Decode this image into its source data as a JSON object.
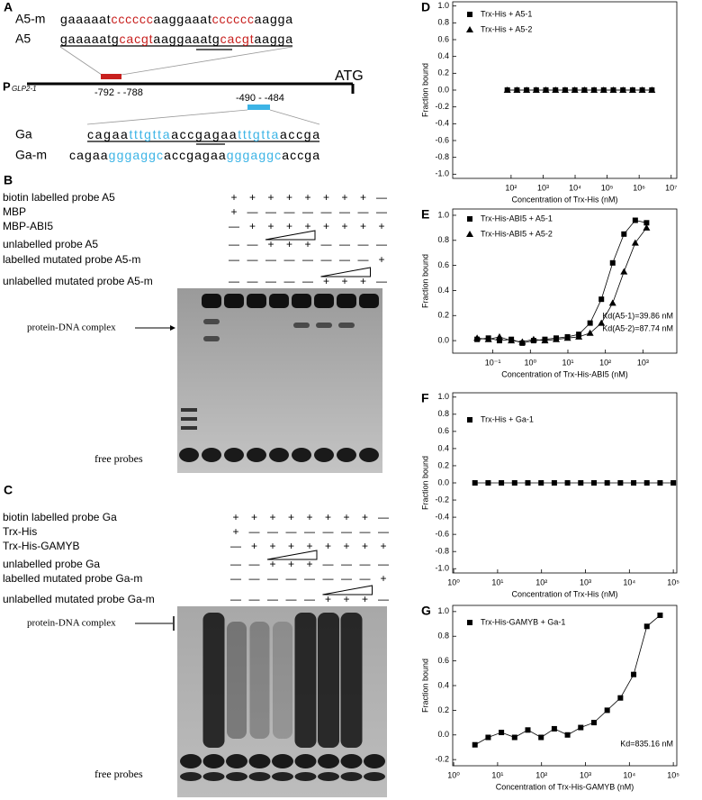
{
  "panel_a": {
    "letter": "A",
    "a5m": {
      "label": "A5-m",
      "segments": [
        "gaaaaat",
        "cccccc",
        "aaggaaat",
        "cccccc",
        "aagga"
      ],
      "color": "#c8201e"
    },
    "a5": {
      "label": "A5",
      "segments": [
        "gaaaaatg",
        "cacgt",
        "aaggaaatg",
        "cacgt",
        "aagga"
      ],
      "color": "#c8201e"
    },
    "promoter": {
      "name": "P",
      "subscript": "GLP2-1",
      "atg": "ATG",
      "site1": "-792 - -788",
      "site2": "-490 - -484"
    },
    "ga": {
      "label": "Ga",
      "segments": [
        "cagaa",
        "tttgtta",
        "accgagaa",
        "tttgtta",
        "accga"
      ],
      "color": "#3cb4e6"
    },
    "gam": {
      "label": "Ga-m",
      "segments": [
        "cagaa",
        "gggaggc",
        "accgagaa",
        "gggaggc",
        "accga"
      ],
      "color": "#3cb4e6"
    }
  },
  "panel_b": {
    "letter": "B",
    "complex_label": "protein-DNA complex",
    "free_label": "free probes",
    "rows": [
      {
        "label": "biotin labelled probe A5",
        "marks": [
          "+",
          "+",
          "+",
          "+",
          "+",
          "+",
          "+",
          "+",
          "—"
        ]
      },
      {
        "label": "MBP",
        "marks": [
          "+",
          "—",
          "—",
          "—",
          "—",
          "—",
          "—",
          "—",
          "—"
        ]
      },
      {
        "label": "MBP-ABI5",
        "marks": [
          "—",
          "+",
          "+",
          "+",
          "+",
          "+",
          "+",
          "+",
          "+"
        ]
      },
      {
        "label": "unlabelled probe A5",
        "marks": [
          "—",
          "—",
          "+",
          "+",
          "+",
          "—",
          "—",
          "—",
          "—"
        ]
      },
      {
        "label": "labelled mutated probe A5-m",
        "marks": [
          "—",
          "—",
          "—",
          "—",
          "—",
          "—",
          "—",
          "—",
          "+"
        ]
      },
      {
        "label": "unlabelled mutated probe A5-m",
        "marks": [
          "—",
          "—",
          "—",
          "—",
          "—",
          "+",
          "+",
          "+",
          "—"
        ]
      }
    ]
  },
  "panel_c": {
    "letter": "C",
    "complex_label": "protein-DNA complex",
    "free_label": "free probes",
    "rows": [
      {
        "label": "biotin labelled probe Ga",
        "marks": [
          "+",
          "+",
          "+",
          "+",
          "+",
          "+",
          "+",
          "+",
          "—"
        ]
      },
      {
        "label": "Trx-His",
        "marks": [
          "+",
          "—",
          "—",
          "—",
          "—",
          "—",
          "—",
          "—",
          "—"
        ]
      },
      {
        "label": "Trx-His-GAMYB",
        "marks": [
          "—",
          "+",
          "+",
          "+",
          "+",
          "+",
          "+",
          "+",
          "+"
        ]
      },
      {
        "label": "unlabelled probe Ga",
        "marks": [
          "—",
          "—",
          "+",
          "+",
          "+",
          "—",
          "—",
          "—",
          "—"
        ]
      },
      {
        "label": "labelled mutated probe Ga-m",
        "marks": [
          "—",
          "—",
          "—",
          "—",
          "—",
          "—",
          "—",
          "—",
          "+"
        ]
      },
      {
        "label": "unlabelled mutated probe Ga-m",
        "marks": [
          "—",
          "—",
          "—",
          "—",
          "—",
          "+",
          "+",
          "+",
          "—"
        ]
      }
    ]
  },
  "chart_data": [
    {
      "type": "scatter",
      "letter": "D",
      "xlabel": "Concentration of Trx-His (nM)",
      "ylabel": "Fraction bound",
      "xscale": "log",
      "connect": true,
      "xlim": [
        1.5,
        15000000
      ],
      "xticks": [
        {
          "value": 100,
          "label": "10²"
        },
        {
          "value": 1000,
          "label": "10³"
        },
        {
          "value": 10000,
          "label": "10⁴"
        },
        {
          "value": 100000,
          "label": "10⁵"
        },
        {
          "value": 1000000,
          "label": "10⁶"
        },
        {
          "value": 10000000,
          "label": "10⁷"
        }
      ],
      "ylim": [
        -1.05,
        1.05
      ],
      "yticks": [
        {
          "value": -1,
          "label": "-1.0"
        },
        -0.8,
        -0.6,
        -0.4,
        -0.2,
        {
          "value": 0,
          "label": "0.0"
        },
        0.2,
        0.4,
        0.6,
        0.8,
        {
          "value": 1,
          "label": "1.0"
        }
      ],
      "series": [
        {
          "name": "Trx-His + A5-1",
          "marker": "square",
          "color": "#000000",
          "x": [
            76.3,
            152.6,
            305.2,
            610.4,
            1220.7,
            2441.4,
            4882.8,
            9765.6,
            19531.3,
            39062.5,
            78125,
            156250,
            312500,
            625000,
            1250000,
            2500000
          ],
          "values": [
            0,
            0,
            0,
            0,
            0,
            0,
            0,
            0,
            0,
            0,
            0,
            0,
            0,
            0,
            0,
            0
          ]
        },
        {
          "name": "Trx-His + A5-2",
          "marker": "triangle",
          "color": "#000000",
          "x": [
            76.3,
            152.6,
            305.2,
            610.4,
            1220.7,
            2441.4,
            4882.8,
            9765.6,
            19531.3,
            39062.5,
            78125,
            156250,
            312500,
            625000,
            1250000,
            2500000
          ],
          "values": [
            0,
            0,
            0,
            0,
            0,
            0,
            0,
            0,
            0,
            0,
            0,
            0,
            0,
            0,
            0,
            0
          ]
        }
      ]
    },
    {
      "type": "scatter",
      "letter": "E",
      "xlabel": "Concentration of Trx-His-ABI5 (nM)",
      "ylabel": "Fraction bound",
      "xscale": "log",
      "connect": true,
      "xlim": [
        0.0085,
        8000
      ],
      "xticks": [
        {
          "value": 0.1,
          "label": "10⁻¹"
        },
        {
          "value": 1,
          "label": "10⁰"
        },
        {
          "value": 10,
          "label": "10¹"
        },
        {
          "value": 100,
          "label": "10²"
        },
        {
          "value": 1000,
          "label": "10³"
        }
      ],
      "ylim": [
        -0.1,
        1.05
      ],
      "yticks": [
        {
          "value": 0,
          "label": "0.0"
        },
        0.2,
        0.4,
        0.6,
        0.8,
        {
          "value": 1,
          "label": "1.0"
        }
      ],
      "annotations": [
        "Kd(A5-1)=39.86 nM",
        "Kd(A5-2)=87.74 nM"
      ],
      "series": [
        {
          "name": "Trx-His-ABI5 + A5-1",
          "marker": "square",
          "color": "#000000",
          "x": [
            0.038,
            0.076,
            0.15,
            0.31,
            0.61,
            1.22,
            2.44,
            4.88,
            9.77,
            19.53,
            39.06,
            78.13,
            156.25,
            312.5,
            625,
            1250
          ],
          "values": [
            0.01,
            0.02,
            0,
            0.01,
            -0.02,
            0,
            0.01,
            0.02,
            0.03,
            0.05,
            0.14,
            0.33,
            0.62,
            0.85,
            0.96,
            0.94
          ]
        },
        {
          "name": "Trx-His-ABI5 + A5-2",
          "marker": "triangle",
          "color": "#000000",
          "x": [
            0.038,
            0.076,
            0.15,
            0.31,
            0.61,
            1.22,
            2.44,
            4.88,
            9.77,
            19.53,
            39.06,
            78.13,
            156.25,
            312.5,
            625,
            1250
          ],
          "values": [
            0.02,
            0.01,
            0.03,
            0,
            -0.01,
            0.01,
            0,
            0.01,
            0.02,
            0.03,
            0.06,
            0.14,
            0.3,
            0.55,
            0.78,
            0.9
          ]
        }
      ]
    },
    {
      "type": "scatter",
      "letter": "F",
      "xlabel": "Concentration of Trx-His (nM)",
      "ylabel": "Fraction bound",
      "xscale": "log",
      "connect": true,
      "xlim": [
        0.95,
        120000
      ],
      "xticks": [
        {
          "value": 1,
          "label": "10⁰"
        },
        {
          "value": 10,
          "label": "10¹"
        },
        {
          "value": 100,
          "label": "10²"
        },
        {
          "value": 1000,
          "label": "10³"
        },
        {
          "value": 10000,
          "label": "10⁴"
        },
        {
          "value": 100000,
          "label": "10⁵"
        }
      ],
      "ylim": [
        -1.05,
        1.05
      ],
      "yticks": [
        {
          "value": -1,
          "label": "-1.0"
        },
        -0.8,
        -0.6,
        -0.4,
        -0.2,
        {
          "value": 0,
          "label": "0.0"
        },
        0.2,
        0.4,
        0.6,
        0.8,
        {
          "value": 1,
          "label": "1.0"
        }
      ],
      "series": [
        {
          "name": "Trx-His + Ga-1",
          "marker": "square",
          "color": "#000000",
          "x": [
            3.05,
            6.1,
            12.2,
            24.4,
            48.8,
            97.7,
            195.3,
            390.6,
            781.3,
            1562.5,
            3125,
            6250,
            12500,
            25000,
            50000,
            100000
          ],
          "values": [
            0,
            0,
            0,
            0,
            0,
            0,
            0,
            0,
            0,
            0,
            0,
            0,
            0,
            0,
            0,
            0
          ]
        }
      ]
    },
    {
      "type": "scatter",
      "letter": "G",
      "xlabel": "Concentration of Trx-His-GAMYB (nM)",
      "ylabel": "Fraction bound",
      "xscale": "log",
      "connect": true,
      "xlim": [
        0.95,
        120000
      ],
      "xticks": [
        {
          "value": 1,
          "label": "10⁰"
        },
        {
          "value": 10,
          "label": "10¹"
        },
        {
          "value": 100,
          "label": "10²"
        },
        {
          "value": 1000,
          "label": "10³"
        },
        {
          "value": 10000,
          "label": "10⁴"
        },
        {
          "value": 100000,
          "label": "10⁵"
        }
      ],
      "ylim": [
        -0.25,
        1.05
      ],
      "yticks": [
        -0.2,
        {
          "value": 0,
          "label": "0.0"
        },
        0.2,
        0.4,
        0.6,
        0.8,
        {
          "value": 1,
          "label": "1.0"
        }
      ],
      "annotations": [
        "Kd=835.16 nM"
      ],
      "series": [
        {
          "name": "Trx-His-GAMYB + Ga-1",
          "marker": "square",
          "color": "#000000",
          "x": [
            3.05,
            6.1,
            12.2,
            24.4,
            48.8,
            97.7,
            195.3,
            390.6,
            781.3,
            1562.5,
            3125,
            6250,
            12500,
            25000,
            50000
          ],
          "values": [
            -0.08,
            -0.02,
            0.02,
            -0.02,
            0.04,
            -0.02,
            0.05,
            0,
            0.06,
            0.1,
            0.2,
            0.3,
            0.49,
            0.88,
            0.97
          ]
        }
      ]
    }
  ]
}
